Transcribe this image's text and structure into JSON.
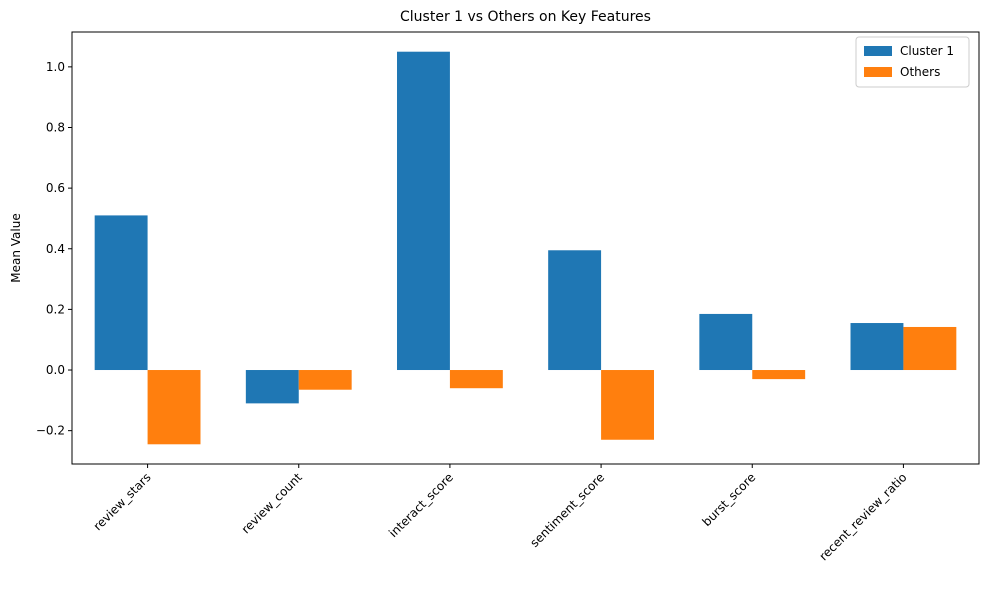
{
  "chart_data": {
    "type": "bar",
    "title": "Cluster 1 vs Others on Key Features",
    "xlabel": "",
    "ylabel": "Mean Value",
    "categories": [
      "review_stars",
      "review_count",
      "interact_score",
      "sentiment_score",
      "burst_score",
      "recent_review_ratio"
    ],
    "series": [
      {
        "name": "Cluster 1",
        "color": "#1f77b4",
        "values": [
          0.51,
          -0.11,
          1.05,
          0.395,
          0.185,
          0.155
        ]
      },
      {
        "name": "Others",
        "color": "#ff7f0e",
        "values": [
          -0.245,
          -0.065,
          -0.06,
          -0.23,
          -0.03,
          0.142
        ]
      }
    ],
    "yticks": [
      -0.2,
      0.0,
      0.2,
      0.4,
      0.6,
      0.8,
      1.0
    ],
    "ytick_labels": [
      "−0.2",
      "0.0",
      "0.2",
      "0.4",
      "0.6",
      "0.8",
      "1.0"
    ],
    "ylim": [
      -0.31,
      1.115
    ],
    "grid": false,
    "legend_position": "top-right"
  }
}
